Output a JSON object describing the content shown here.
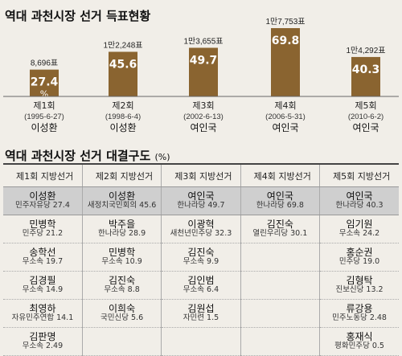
{
  "title1": "역대 과천시장 선거 득표현황",
  "title2": "역대 과천시장 선거 대결구도",
  "title2_unit": "(%)",
  "chart_data": {
    "type": "bar",
    "categories": [
      "제1회",
      "제2회",
      "제3회",
      "제4회",
      "제5회"
    ],
    "dates": [
      "(1995-6-27)",
      "(1998-6-4)",
      "(2002-6-13)",
      "(2006-5-31)",
      "(2010-6-2)"
    ],
    "winners": [
      "이성환",
      "이성환",
      "여인국",
      "여인국",
      "여인국"
    ],
    "votes": [
      "8,696표",
      "1만2,248표",
      "1만3,655표",
      "1만7,753표",
      "1만4,292표"
    ],
    "value_labels": [
      "27.4",
      "45.6",
      "49.7",
      "69.8",
      "40.3"
    ],
    "pct_sign": "%",
    "values": [
      27.4,
      45.6,
      49.7,
      69.8,
      40.3
    ],
    "bar_color": "#8a6430"
  },
  "table": {
    "headers": [
      "제1회 지방선거",
      "제2회 지방선거",
      "제3회 지방선거",
      "제4회 지방선거",
      "제5회 지방선거"
    ],
    "rows": [
      [
        {
          "name": "이성환",
          "party": "민주자유당 27.4"
        },
        {
          "name": "이성환",
          "party": "새정치국민회의 45.6"
        },
        {
          "name": "여인국",
          "party": "한나라당 49.7"
        },
        {
          "name": "여인국",
          "party": "한나라당 69.8"
        },
        {
          "name": "여인국",
          "party": "한나라당 40.3"
        }
      ],
      [
        {
          "name": "민병학",
          "party": "민주당 21.2"
        },
        {
          "name": "박주을",
          "party": "한나라당 28.9"
        },
        {
          "name": "이광혁",
          "party": "새천년민주당 32.3"
        },
        {
          "name": "김진숙",
          "party": "열린우리당 30.1"
        },
        {
          "name": "임기원",
          "party": "무소속 24.2"
        }
      ],
      [
        {
          "name": "송학선",
          "party": "무소속 19.7"
        },
        {
          "name": "민병학",
          "party": "무소속 10.9"
        },
        {
          "name": "김진숙",
          "party": "무소속 9.9"
        },
        null,
        {
          "name": "홍순권",
          "party": "민주당 19.0"
        }
      ],
      [
        {
          "name": "김경필",
          "party": "무소속 14.9"
        },
        {
          "name": "김진숙",
          "party": "무소속 8.8"
        },
        {
          "name": "김인범",
          "party": "무소속 6.4"
        },
        null,
        {
          "name": "김형탁",
          "party": "진보신당 13.2"
        }
      ],
      [
        {
          "name": "최영하",
          "party": "자유민주연합 14.1"
        },
        {
          "name": "이희숙",
          "party": "국민신당 5.6"
        },
        {
          "name": "김원섭",
          "party": "자민련 1.5"
        },
        null,
        {
          "name": "류강용",
          "party": "민주노동당 2.48"
        }
      ],
      [
        {
          "name": "김판명",
          "party": "무소속 2.49"
        },
        null,
        null,
        null,
        {
          "name": "홍재식",
          "party": "평화민주당 0.5"
        }
      ]
    ]
  }
}
